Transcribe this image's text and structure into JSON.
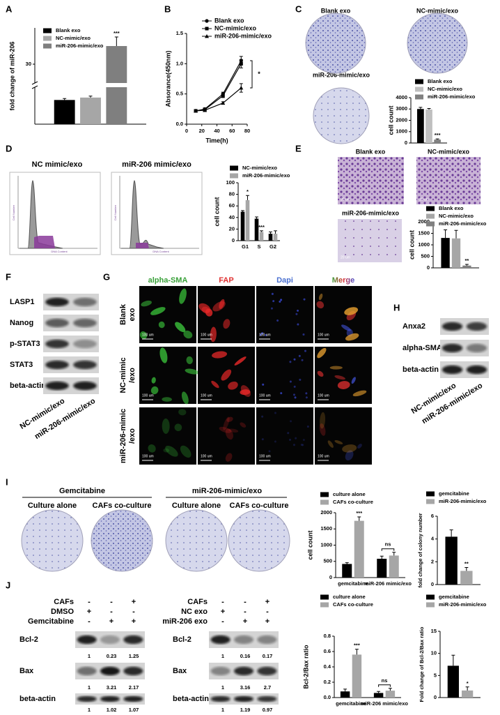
{
  "panel_labels": [
    "A",
    "B",
    "C",
    "D",
    "E",
    "F",
    "G",
    "H",
    "I",
    "J"
  ],
  "chart_data": [
    {
      "type": "bar",
      "y_label": "fold change of miR-206",
      "categories": [
        null
      ],
      "series": [
        {
          "name": "Blank exo",
          "color": "#000000",
          "values": [
            1.0
          ],
          "errors": [
            0.06
          ]
        },
        {
          "name": "NC-mimic/exo",
          "color": "#a6a6a6",
          "values": [
            1.1
          ],
          "errors": [
            0.06
          ]
        },
        {
          "name": "miR-206-mimic/exo",
          "color": "#7f7f7f",
          "values": [
            33
          ],
          "errors": [
            1.5
          ],
          "significance": [
            "***"
          ]
        }
      ],
      "ylim": [
        0,
        36
      ],
      "ybreak": [
        1.5,
        27
      ],
      "yticks": [
        30
      ],
      "legend": "upper left"
    },
    {
      "type": "line",
      "x_label": "Time(h)",
      "y_label": "Absorance(450nm)",
      "x": [
        12,
        24,
        48,
        72
      ],
      "series": [
        {
          "name": "Blank exo",
          "color": "#000000",
          "marker": "circle",
          "values": [
            0.22,
            0.25,
            0.5,
            1.05
          ],
          "errors": [
            0.02,
            0.02,
            0.03,
            0.07
          ]
        },
        {
          "name": "NC-mimic/exo",
          "color": "#000000",
          "marker": "square",
          "values": [
            0.22,
            0.24,
            0.47,
            1.0
          ],
          "errors": [
            0.02,
            0.02,
            0.03,
            0.07
          ]
        },
        {
          "name": "miR-206-mimic/exo",
          "color": "#000000",
          "marker": "triangle",
          "values": [
            0.22,
            0.23,
            0.35,
            0.6
          ],
          "errors": [
            0.02,
            0.02,
            0.02,
            0.07
          ]
        }
      ],
      "xlim": [
        0,
        80
      ],
      "xticks": [
        0,
        20,
        40,
        60,
        80
      ],
      "ylim": [
        0,
        1.5
      ],
      "yticks": [
        {
          "value": 0,
          "label": "0.0"
        },
        {
          "value": 0.5,
          "label": "0.5"
        },
        {
          "value": 1,
          "label": "1.0"
        },
        {
          "value": 1.5,
          "label": "1.5"
        }
      ],
      "annotations": [
        "*"
      ],
      "legend": "upper left"
    },
    {
      "type": "bar",
      "y_label": "cell count",
      "categories": [
        null
      ],
      "series": [
        {
          "name": "Blank exo",
          "color": "#000000",
          "values": [
            3000
          ],
          "errors": [
            150
          ]
        },
        {
          "name": "NC-mimic/exo",
          "color": "#bfbfbf",
          "values": [
            2950
          ],
          "errors": [
            100
          ]
        },
        {
          "name": "miR-206-mimic/exo",
          "color": "#808080",
          "values": [
            300
          ],
          "errors": [
            60
          ],
          "significance": [
            "***"
          ]
        }
      ],
      "ylim": [
        0,
        4000
      ],
      "yticks": [
        0,
        1000,
        2000,
        3000,
        4000
      ],
      "legend": "top"
    },
    {
      "type": "bar",
      "y_label": "cell count",
      "categories": [
        "G1",
        "S",
        "G2"
      ],
      "series": [
        {
          "name": "NC-mimic/exo",
          "color": "#000000",
          "values": [
            50,
            38,
            12
          ],
          "errors": [
            2,
            3,
            3
          ]
        },
        {
          "name": "miR-206-mimic/exo",
          "color": "#a6a6a6",
          "values": [
            70,
            15,
            12
          ],
          "errors": [
            8,
            2,
            5
          ],
          "significance": [
            "*",
            "***",
            null
          ]
        }
      ],
      "ylim": [
        0,
        100
      ],
      "yticks": [
        0,
        20,
        40,
        60,
        80,
        100
      ],
      "legend": "top"
    },
    {
      "type": "bar",
      "y_label": "cell count",
      "categories": [
        null
      ],
      "series": [
        {
          "name": "Blank exo",
          "color": "#000000",
          "values": [
            1300
          ],
          "errors": [
            350
          ]
        },
        {
          "name": "NC-mimic/exo",
          "color": "#a6a6a6",
          "values": [
            1280
          ],
          "errors": [
            350
          ]
        },
        {
          "name": "miR-206-mimic/exo",
          "color": "#808080",
          "values": [
            100
          ],
          "errors": [
            50
          ],
          "significance": [
            "**"
          ]
        }
      ],
      "ylim": [
        0,
        2000
      ],
      "yticks": [
        0,
        500,
        1000,
        1500,
        2000
      ],
      "legend": "top"
    },
    {
      "type": "bar",
      "y_label": "cell count",
      "categories": [
        "gemcitabine",
        "miR-206 mimic/exo"
      ],
      "series": [
        {
          "name": "culture alone",
          "color": "#000000",
          "values": [
            420,
            580
          ],
          "errors": [
            40,
            80
          ]
        },
        {
          "name": "CAFs co-culture",
          "color": "#a6a6a6",
          "values": [
            1750,
            680
          ],
          "errors": [
            120,
            100
          ],
          "significance": [
            "***",
            null
          ]
        }
      ],
      "category_significance": [
        null,
        "ns"
      ],
      "ylim": [
        0,
        2000
      ],
      "yticks": [
        0,
        500,
        1000,
        1500,
        2000
      ],
      "legend": "top"
    },
    {
      "type": "bar",
      "y_label": "fold change of colony number",
      "categories": [
        null
      ],
      "series": [
        {
          "name": "gemcitabine",
          "color": "#000000",
          "values": [
            4.2
          ],
          "errors": [
            0.6
          ]
        },
        {
          "name": "miR-206-mimic/exo",
          "color": "#a6a6a6",
          "values": [
            1.2
          ],
          "errors": [
            0.3
          ],
          "significance": [
            "**"
          ]
        }
      ],
      "ylim": [
        0,
        6
      ],
      "yticks": [
        0,
        2,
        4,
        6
      ],
      "legend": "top"
    },
    {
      "type": "bar",
      "y_label": "Bcl-2/Bax ratio",
      "categories": [
        "gemcitabine",
        "miR-206 mimic/exo"
      ],
      "series": [
        {
          "name": "culture alone",
          "color": "#000000",
          "values": [
            0.08,
            0.06
          ],
          "errors": [
            0.03,
            0.02
          ]
        },
        {
          "name": "CAFs co-culture",
          "color": "#a6a6a6",
          "values": [
            0.56,
            0.09
          ],
          "errors": [
            0.07,
            0.03
          ],
          "significance": [
            "***",
            null
          ]
        }
      ],
      "category_significance": [
        null,
        "ns"
      ],
      "ylim": [
        0,
        0.8
      ],
      "yticks": [
        {
          "value": 0,
          "label": "0.0"
        },
        {
          "value": 0.2,
          "label": "0.2"
        },
        {
          "value": 0.4,
          "label": "0.4"
        },
        {
          "value": 0.6,
          "label": "0.6"
        },
        {
          "value": 0.8,
          "label": "0.8"
        }
      ],
      "legend": "top"
    },
    {
      "type": "bar",
      "y_label": "Fold change of Bcl-2/Bax ratio",
      "categories": [
        null
      ],
      "series": [
        {
          "name": "gemcitabine",
          "color": "#000000",
          "values": [
            7.2
          ],
          "errors": [
            2.4
          ]
        },
        {
          "name": "miR-206-mimic/exo",
          "color": "#a6a6a6",
          "values": [
            1.6
          ],
          "errors": [
            0.8
          ],
          "significance": [
            "*"
          ]
        }
      ],
      "ylim": [
        0,
        15
      ],
      "yticks": [
        0,
        5,
        10,
        15
      ],
      "legend": "top"
    }
  ],
  "panel_c": {
    "images": [
      "Blank exo",
      "NC-mimic/exo",
      "miR-206-mimic/exo"
    ]
  },
  "panel_d": {
    "histograms": [
      {
        "title": "NC mimic/exo",
        "y_label": "Cell Number",
        "x_label": "DNA Content"
      },
      {
        "title": "miR-206 mimic/exo",
        "y_label": "Cell Number",
        "x_label": "DNA Content"
      }
    ]
  },
  "panel_e": {
    "images": [
      "Blank exo",
      "NC-mimic/exo",
      "miR-206-mimic/exo"
    ],
    "scale_bar": "20 um"
  },
  "panel_f": {
    "rows": [
      "LASP1",
      "Nanog",
      "p-STAT3",
      "STAT3",
      "beta-actin"
    ],
    "lanes": [
      "NC-mimic/exo",
      "miR-206-mimic/exo"
    ]
  },
  "panel_g": {
    "columns": [
      "alpha-SMA",
      "FAP",
      "Dapi",
      "Merge"
    ],
    "rows": [
      [
        "Blank",
        "exo"
      ],
      [
        "NC-mimic",
        "/exo"
      ],
      [
        "miR-206-mimic",
        "/exo"
      ]
    ],
    "scale_bar": "100 um"
  },
  "panel_h": {
    "rows": [
      "Anxa2",
      "alpha-SMA",
      "beta-actin"
    ],
    "lanes": [
      "NC-mimic/exo",
      "miR-206-mimic/exo"
    ]
  },
  "panel_i": {
    "groups": [
      {
        "title": "Gemcitabine",
        "plates": [
          "Culture alone",
          "CAFs co-culture"
        ]
      },
      {
        "title": "miR-206-mimic/exo",
        "plates": [
          "Culture alone",
          "CAFs co-culture"
        ]
      }
    ]
  },
  "panel_j": {
    "blots": [
      {
        "conditions": [
          {
            "name": "CAFs",
            "signs": [
              "-",
              "-",
              "+"
            ]
          },
          {
            "name": "DMSO",
            "signs": [
              "+",
              "-",
              "-"
            ]
          },
          {
            "name": "Gemcitabine",
            "signs": [
              "-",
              "+",
              "+"
            ]
          }
        ],
        "bands": [
          {
            "name": "Bcl-2",
            "quant": [
              "1",
              "0.23",
              "1.25"
            ]
          },
          {
            "name": "Bax",
            "quant": [
              "1",
              "3.21",
              "2.17"
            ]
          },
          {
            "name": "beta-actin",
            "quant": [
              "1",
              "1.02",
              "1.07"
            ]
          }
        ]
      },
      {
        "conditions": [
          {
            "name": "CAFs",
            "signs": [
              "-",
              "-",
              "+"
            ]
          },
          {
            "name": "NC exo",
            "signs": [
              "+",
              "-",
              "-"
            ]
          },
          {
            "name": "miR-206 exo",
            "signs": [
              "-",
              "+",
              "+"
            ]
          }
        ],
        "bands": [
          {
            "name": "Bcl-2",
            "quant": [
              "1",
              "0.16",
              "0.17"
            ]
          },
          {
            "name": "Bax",
            "quant": [
              "1",
              "3.16",
              "2.7"
            ]
          },
          {
            "name": "beta-actin",
            "quant": [
              "1",
              "1.19",
              "0.97"
            ]
          }
        ]
      }
    ]
  }
}
